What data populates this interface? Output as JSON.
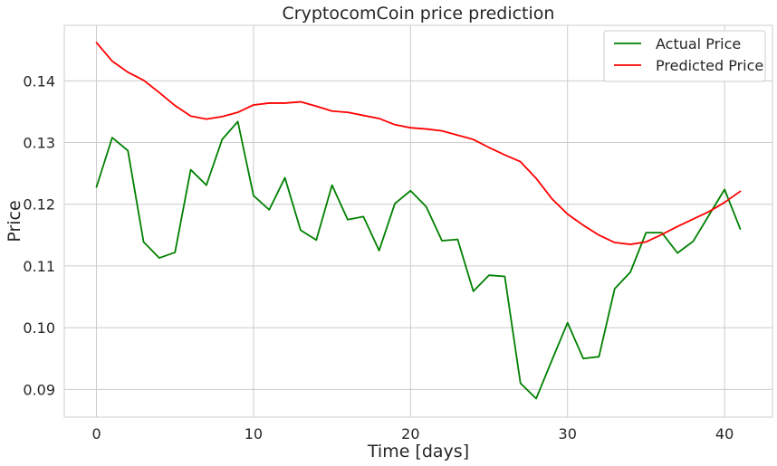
{
  "chart_data": {
    "type": "line",
    "title": "CryptocomCoin price prediction",
    "xlabel": "Time [days]",
    "ylabel": "Price",
    "xlim": [
      -2.05,
      43.05
    ],
    "ylim": [
      0.0855,
      0.149
    ],
    "xticks": [
      0,
      10,
      20,
      30,
      40
    ],
    "yticks": [
      0.09,
      0.1,
      0.11,
      0.12,
      0.13,
      0.14
    ],
    "ytick_labels": [
      "0.09",
      "0.10",
      "0.11",
      "0.12",
      "0.13",
      "0.14"
    ],
    "grid": true,
    "legend_position": "top-right",
    "x": [
      0,
      1,
      2,
      3,
      4,
      5,
      6,
      7,
      8,
      9,
      10,
      11,
      12,
      13,
      14,
      15,
      16,
      17,
      18,
      19,
      20,
      21,
      22,
      23,
      24,
      25,
      26,
      27,
      28,
      29,
      30,
      31,
      32,
      33,
      34,
      35,
      36,
      37,
      38,
      39,
      40,
      41
    ],
    "series": [
      {
        "name": "Actual Price",
        "color": "#008000",
        "values": [
          0.1228,
          0.1308,
          0.1287,
          0.1139,
          0.1113,
          0.1122,
          0.1256,
          0.1231,
          0.1305,
          0.1334,
          0.1214,
          0.1191,
          0.1243,
          0.1158,
          0.1142,
          0.1231,
          0.1175,
          0.118,
          0.1125,
          0.1201,
          0.1222,
          0.1196,
          0.1141,
          0.1143,
          0.1059,
          0.1085,
          0.1083,
          0.091,
          0.0885,
          0.0947,
          0.1008,
          0.095,
          0.0953,
          0.1063,
          0.109,
          0.1154,
          0.1154,
          0.1121,
          0.114,
          0.1182,
          0.1224,
          0.116
        ]
      },
      {
        "name": "Predicted Price",
        "color": "#ff0000",
        "values": [
          0.1462,
          0.1432,
          0.1414,
          0.1401,
          0.1381,
          0.136,
          0.1343,
          0.1338,
          0.1342,
          0.1349,
          0.1361,
          0.1364,
          0.1364,
          0.1366,
          0.1359,
          0.1351,
          0.1349,
          0.1344,
          0.1339,
          0.1329,
          0.1324,
          0.1322,
          0.1319,
          0.1312,
          0.1305,
          0.1292,
          0.128,
          0.1269,
          0.1242,
          0.1209,
          0.1184,
          0.1166,
          0.115,
          0.1138,
          0.1135,
          0.1139,
          0.1151,
          0.1164,
          0.1176,
          0.1188,
          0.1203,
          0.1221
        ]
      }
    ]
  }
}
